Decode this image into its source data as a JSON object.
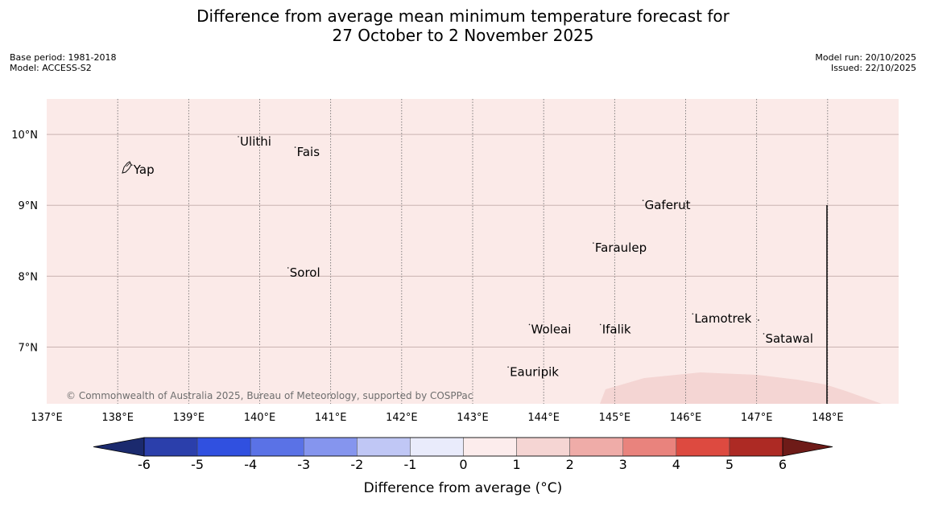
{
  "title": {
    "line1": "Difference from average mean minimum temperature forecast for",
    "line2": "27 October to 2 November 2025"
  },
  "meta": {
    "base_period": "Base period: 1981-2018",
    "model": "Model: ACCESS-S2",
    "model_run": "Model run: 20/10/2025",
    "issued": "Issued: 22/10/2025"
  },
  "map": {
    "extent": {
      "lon_min": 137.0,
      "lon_max": 149.0,
      "lat_min": 6.2,
      "lat_max": 10.5
    },
    "lon_ticks": [
      "137°E",
      "138°E",
      "139°E",
      "140°E",
      "141°E",
      "142°E",
      "143°E",
      "144°E",
      "145°E",
      "146°E",
      "147°E",
      "148°E"
    ],
    "lat_ticks": [
      "10°N",
      "9°N",
      "8°N",
      "7°N"
    ],
    "background_color": "#fbeae8",
    "warm_region_color": "#f4d5d3",
    "places": [
      {
        "name": "Yap",
        "lon": 138.2,
        "lat": 9.5
      },
      {
        "name": "Ulithi",
        "lon": 139.7,
        "lat": 9.9
      },
      {
        "name": "Fais",
        "lon": 140.5,
        "lat": 9.75
      },
      {
        "name": "Gaferut",
        "lon": 145.4,
        "lat": 9.0
      },
      {
        "name": "Faraulep",
        "lon": 144.7,
        "lat": 8.4
      },
      {
        "name": "Sorol",
        "lon": 140.4,
        "lat": 8.05
      },
      {
        "name": "Woleai",
        "lon": 143.8,
        "lat": 7.25
      },
      {
        "name": "Ifalik",
        "lon": 144.8,
        "lat": 7.25
      },
      {
        "name": "Lamotrek",
        "lon": 146.1,
        "lat": 7.4
      },
      {
        "name": "Satawal",
        "lon": 147.1,
        "lat": 7.12
      },
      {
        "name": "Eauripik",
        "lon": 143.5,
        "lat": 6.65
      }
    ],
    "credit": "© Commonwealth of Australia 2025, Bureau of Meteorology, supported by COSPPac"
  },
  "colorbar": {
    "ticks": [
      "-6",
      "-5",
      "-4",
      "-3",
      "-2",
      "-1",
      "0",
      "1",
      "2",
      "3",
      "4",
      "5",
      "6"
    ],
    "colors": [
      "#2b3fab",
      "#3050e0",
      "#5a72e6",
      "#8595ee",
      "#c0c7f5",
      "#e9ebfb",
      "#fcecec",
      "#f5d5d3",
      "#efaca8",
      "#e9837d",
      "#dd4a40",
      "#ad2a24"
    ],
    "under_color": "#1b2a6e",
    "over_color": "#6e1b18",
    "label": "Difference from average (°C)"
  }
}
